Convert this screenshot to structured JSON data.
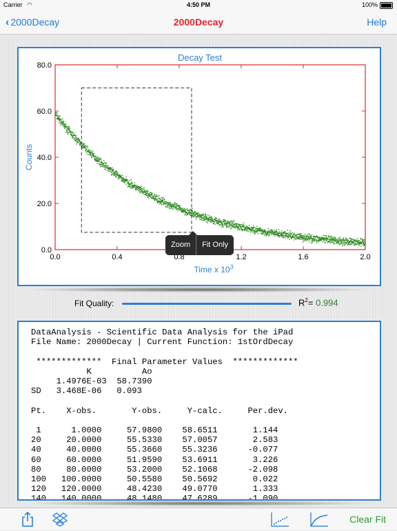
{
  "status": {
    "carrier": "Carrier",
    "time": "4:50 PM",
    "battery": "100%"
  },
  "nav": {
    "back_label": "2000Decay",
    "title": "2000Decay",
    "help_label": "Help"
  },
  "chart_data": {
    "type": "scatter",
    "title": "Decay Test",
    "xlabel": "Time x 10",
    "xlabel_sup": "3",
    "ylabel": "Counts",
    "xlim": [
      0.0,
      2.0
    ],
    "ylim": [
      0.0,
      80.0
    ],
    "x_ticks": [
      "0.0",
      "0.4",
      "0.8",
      "1.2",
      "1.6",
      "2.0"
    ],
    "x_tick_values": [
      0.0,
      0.4,
      0.8,
      1.2,
      1.6,
      2.0
    ],
    "y_ticks": [
      "0.0",
      "20.0",
      "40.0",
      "60.0",
      "80.0"
    ],
    "y_tick_values": [
      0,
      20,
      40,
      60,
      80
    ],
    "series": [
      {
        "model": "1stOrdDecay",
        "A0": 58.739,
        "K": 1.4976,
        "x_unit_scale": 1000,
        "n_points": 2000,
        "color": "#2c8a1e"
      }
    ],
    "selection_rect": {
      "x": [
        0.17,
        0.88
      ],
      "y": [
        7.5,
        70.0
      ]
    },
    "grid": false,
    "frame_color": "#e0262f"
  },
  "popup": {
    "zoom_label": "Zoom",
    "fit_only_label": "Fit Only"
  },
  "fit_quality": {
    "label": "Fit Quality:",
    "r2_label": "R",
    "r2_sup": "2",
    "r2_eq": "= ",
    "r2_value": "0.994",
    "level": 0.994
  },
  "report": {
    "lines": [
      "DataAnalysis - Scientific Data Analysis for the iPad",
      "File Name: 2000Decay | Current Function: 1stOrdDecay",
      "",
      " *************  Final Parameter Values  *************",
      "           K          Ao",
      "     1.4976E-03  58.7390",
      "SD   3.468E-06   0.093",
      "",
      "Pt.    X-obs.       Y-obs.     Y-calc.     Per.dev.",
      "",
      " 1      1.0000     57.9800    58.6511       1.144",
      "20     20.0000     55.5330    57.0057       2.583",
      "40     40.0000     55.3660    55.3236      -0.077",
      "60     60.0000     51.9590    53.6911       3.226",
      "80     80.0000     53.2000    52.1068      -2.098",
      "100   100.0000     50.5580    50.5692       0.022",
      "120   120.0000     48.4230    49.0770       1.333",
      "140   140.0000     48.1480    47.6289      -1.090"
    ]
  },
  "toolbar": {
    "share_icon": "share-icon",
    "dropbox_icon": "dropbox-icon",
    "scatter_icon": "scatter-plot-icon",
    "curve_icon": "fit-curve-icon",
    "clear_fit_label": "Clear Fit"
  },
  "colors": {
    "accent": "#2b7fd6",
    "title_red": "#e0262f",
    "green": "#2d9a31"
  }
}
